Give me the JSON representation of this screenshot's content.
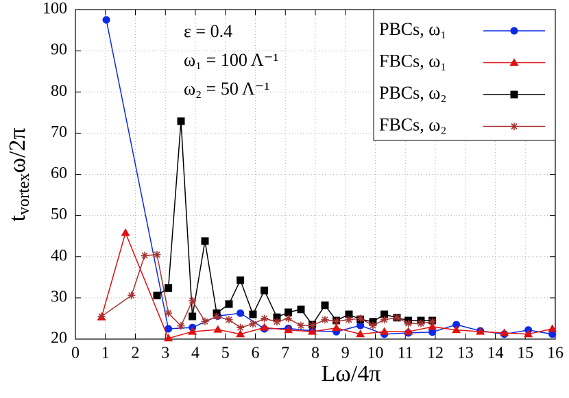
{
  "chart_data": {
    "type": "line",
    "ylabel": [
      "t",
      "vortex",
      "ω/2π"
    ],
    "xlabel": "Lω/4π",
    "annotations": [
      "ε = 0.4",
      "ω₁ = 100 Λ⁻¹",
      "ω₂ = 50 Λ⁻¹"
    ],
    "xlim": [
      0,
      16
    ],
    "ylim": [
      20,
      100
    ],
    "xticks": [
      0,
      1,
      2,
      3,
      4,
      5,
      6,
      7,
      8,
      9,
      10,
      11,
      12,
      13,
      14,
      15,
      16
    ],
    "yticks": [
      20,
      30,
      40,
      50,
      60,
      70,
      80,
      90,
      100
    ],
    "grid": true,
    "legend": "upper right",
    "series": [
      {
        "name": "PBCs, ω₁",
        "color": "#0a2ae8",
        "marker": "circle",
        "x": [
          1.03,
          3.1,
          3.9,
          4.75,
          5.5,
          6.3,
          7.1,
          7.9,
          8.7,
          9.5,
          10.3,
          11.1,
          11.9,
          12.7,
          13.5,
          14.3,
          15.1,
          15.9
        ],
        "values": [
          97.5,
          22.5,
          22.8,
          25.6,
          26.3,
          22.5,
          22.6,
          22,
          21.8,
          23.3,
          21.2,
          21.5,
          21.7,
          23.5,
          22,
          21.2,
          22.2,
          21.2
        ]
      },
      {
        "name": "FBCs, ω₁",
        "color": "#e01010",
        "marker": "triangle",
        "x": [
          0.87,
          1.67,
          3.1,
          3.9,
          4.75,
          5.5,
          6.3,
          7.1,
          7.9,
          8.7,
          9.5,
          10.3,
          11.1,
          11.9,
          12.7,
          13.5,
          14.3,
          15.1,
          15.9
        ],
        "values": [
          25.3,
          45.8,
          20.2,
          21.8,
          22.3,
          21.2,
          22.8,
          22.2,
          21.8,
          22.7,
          21.2,
          21.8,
          21.8,
          23,
          22.2,
          21.8,
          21.5,
          21.2,
          22.5
        ]
      },
      {
        "name": "PBCs, ω₂",
        "color": "#000000",
        "marker": "square",
        "x": [
          2.72,
          3.1,
          3.52,
          3.9,
          4.32,
          4.71,
          5.12,
          5.5,
          5.92,
          6.3,
          6.72,
          7.1,
          7.52,
          7.9,
          8.32,
          8.7,
          9.12,
          9.5,
          9.92,
          10.3,
          10.72,
          11.1,
          11.52,
          11.9
        ],
        "values": [
          30.6,
          32.4,
          72.9,
          25.5,
          43.8,
          26.3,
          28.5,
          34.3,
          26,
          31.8,
          25.3,
          26.5,
          27.2,
          23.5,
          28.2,
          24.5,
          26,
          24.8,
          24.2,
          26,
          25.2,
          24.5,
          24.5,
          24.5
        ]
      },
      {
        "name": "FBCs, ω₂",
        "color": "#a83232",
        "marker": "star",
        "x": [
          0.87,
          1.87,
          2.31,
          2.72,
          3.1,
          3.52,
          3.9,
          4.32,
          4.71,
          5.12,
          5.5,
          5.92,
          6.3,
          6.72,
          7.1,
          7.52,
          7.9,
          8.32,
          8.7,
          9.12,
          9.5,
          9.92,
          10.3,
          10.72,
          11.1,
          11.52,
          11.9
        ],
        "values": [
          25.5,
          30.6,
          40.3,
          40.5,
          26.3,
          23.2,
          29.3,
          24.3,
          25.5,
          24.7,
          22.8,
          23.7,
          25,
          24.2,
          25,
          23.3,
          23.3,
          24.7,
          24.3,
          24.7,
          25,
          23.3,
          24.7,
          25.2,
          23.8,
          23.8,
          24.2
        ]
      }
    ]
  }
}
